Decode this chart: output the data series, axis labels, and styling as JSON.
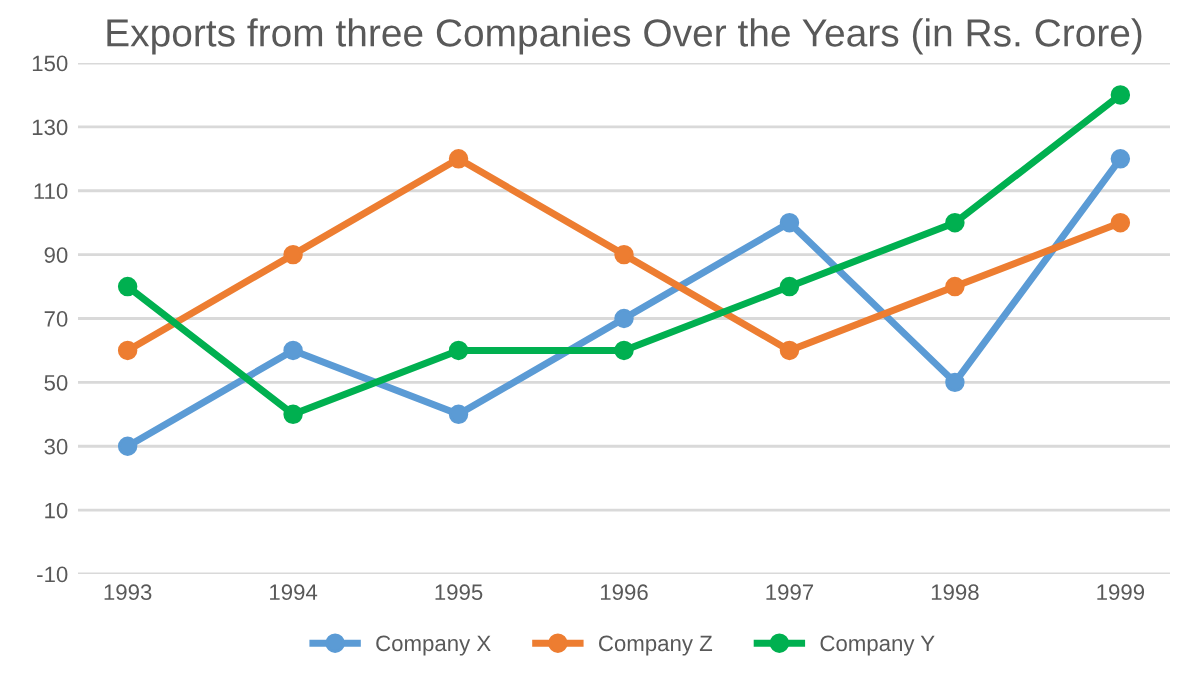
{
  "chart_data": {
    "type": "line",
    "title": "Exports from three Companies Over the Years (in Rs. Crore)",
    "categories": [
      "1993",
      "1994",
      "1995",
      "1996",
      "1997",
      "1998",
      "1999"
    ],
    "series": [
      {
        "name": "Company X",
        "color": "#5b9bd5",
        "values": [
          30,
          60,
          40,
          70,
          100,
          50,
          120
        ]
      },
      {
        "name": "Company Z",
        "color": "#ed7d31",
        "values": [
          60,
          90,
          120,
          90,
          60,
          80,
          100
        ]
      },
      {
        "name": "Company Y",
        "color": "#00b050",
        "values": [
          80,
          40,
          60,
          60,
          80,
          100,
          140
        ]
      }
    ],
    "ylim": [
      -10,
      150
    ],
    "yticks": [
      -10,
      10,
      30,
      50,
      70,
      90,
      110,
      130,
      150
    ],
    "grid": "y",
    "legend": "bottom",
    "marker": "circle",
    "line_style": "solid"
  }
}
